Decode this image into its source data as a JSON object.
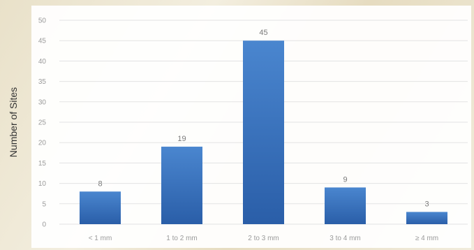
{
  "chart_data": {
    "type": "bar",
    "title": "",
    "xlabel": "",
    "ylabel": "Number of Sites",
    "categories": [
      "< 1 mm",
      "1 to 2 mm",
      "2 to 3 mm",
      "3 to 4 mm",
      "≥ 4 mm"
    ],
    "values": [
      8,
      19,
      45,
      9,
      3
    ],
    "data_labels": [
      "8",
      "19",
      "45",
      "9",
      "3"
    ],
    "ylim": [
      0,
      50
    ],
    "yticks": [
      "0",
      "5",
      "10",
      "15",
      "20",
      "25",
      "30",
      "35",
      "40",
      "45",
      "50"
    ],
    "grid": true,
    "legend": "none",
    "colors": {
      "bar_top": "#4a86cf",
      "bar_bottom": "#2a5ea8",
      "grid": "#e3e3e3",
      "tick_text": "#9a9a9a"
    }
  }
}
